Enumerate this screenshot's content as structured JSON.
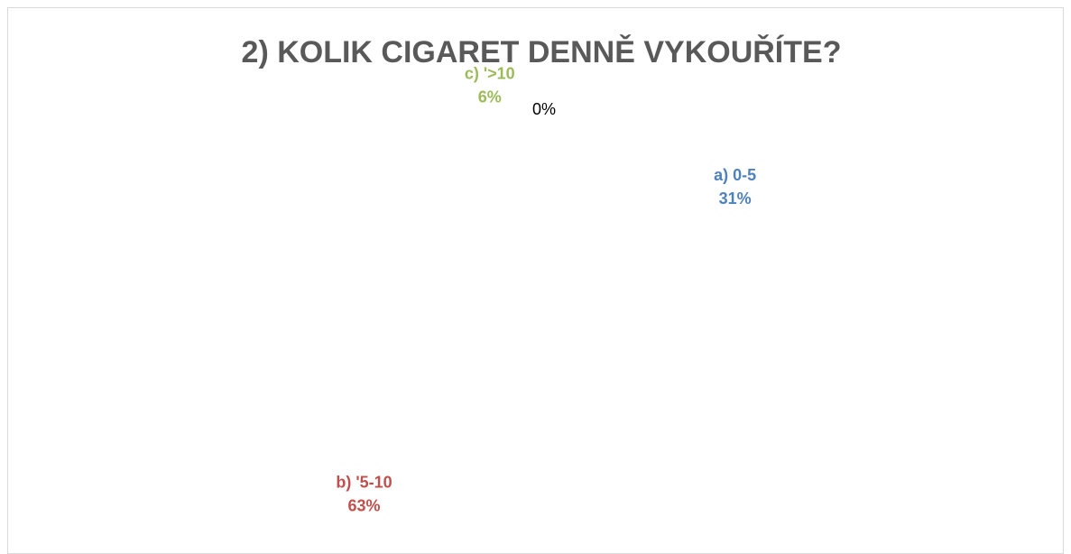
{
  "chart_data": {
    "type": "pie",
    "title": "2) KOLIK CIGARET DENNĚ VYKOUŘÍTE?",
    "categories": [
      "a) 0-5",
      "b) '5-10",
      "c) '>10",
      null
    ],
    "values": [
      31,
      63,
      6,
      0
    ],
    "value_labels": [
      "31%",
      "63%",
      "6%",
      "0%"
    ],
    "colors": [
      "#4f81bd",
      "#c0504d",
      "#9bbb59",
      "#8064a2"
    ]
  }
}
